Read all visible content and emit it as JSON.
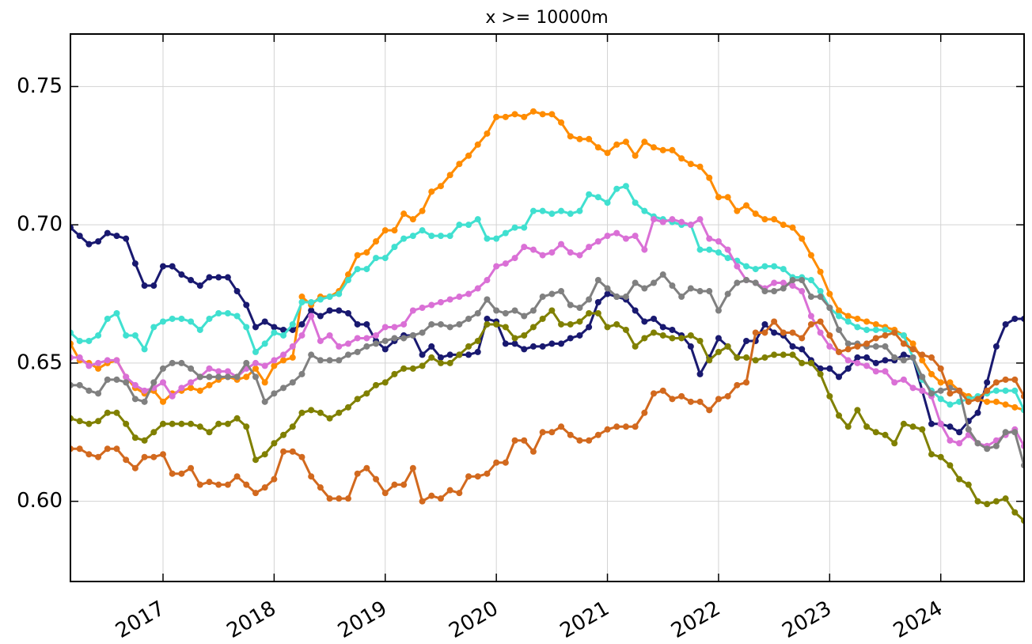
{
  "chart_data": {
    "type": "line",
    "title": "x >= 10000m",
    "x": [
      "2016-03",
      "2016-04",
      "2016-05",
      "2016-06",
      "2016-07",
      "2016-08",
      "2016-09",
      "2016-10",
      "2016-11",
      "2016-12",
      "2017-01",
      "2017-02",
      "2017-03",
      "2017-04",
      "2017-05",
      "2017-06",
      "2017-07",
      "2017-08",
      "2017-09",
      "2017-10",
      "2017-11",
      "2017-12",
      "2018-01",
      "2018-02",
      "2018-03",
      "2018-04",
      "2018-05",
      "2018-06",
      "2018-07",
      "2018-08",
      "2018-09",
      "2018-10",
      "2018-11",
      "2018-12",
      "2019-01",
      "2019-02",
      "2019-03",
      "2019-04",
      "2019-05",
      "2019-06",
      "2019-07",
      "2019-08",
      "2019-09",
      "2019-10",
      "2019-11",
      "2019-12",
      "2020-01",
      "2020-02",
      "2020-03",
      "2020-04",
      "2020-05",
      "2020-06",
      "2020-07",
      "2020-08",
      "2020-09",
      "2020-10",
      "2020-11",
      "2020-12",
      "2021-01",
      "2021-02",
      "2021-03",
      "2021-04",
      "2021-05",
      "2021-06",
      "2021-07",
      "2021-08",
      "2021-09",
      "2021-10",
      "2021-11",
      "2021-12",
      "2022-01",
      "2022-02",
      "2022-03",
      "2022-04",
      "2022-05",
      "2022-06",
      "2022-07",
      "2022-08",
      "2022-09",
      "2022-10",
      "2022-11",
      "2022-12",
      "2023-01",
      "2023-02",
      "2023-03",
      "2023-04",
      "2023-05",
      "2023-06",
      "2023-07",
      "2023-08",
      "2023-09",
      "2023-10",
      "2023-11",
      "2023-12",
      "2024-01",
      "2024-02",
      "2024-03",
      "2024-04",
      "2024-05",
      "2024-06",
      "2024-07",
      "2024-08",
      "2024-09",
      "2024-10"
    ],
    "series": [
      {
        "color": "#191970",
        "values": [
          0.699,
          0.696,
          0.693,
          0.694,
          0.697,
          0.696,
          0.695,
          0.686,
          0.678,
          0.678,
          0.685,
          0.685,
          0.682,
          0.68,
          0.678,
          0.681,
          0.681,
          0.681,
          0.676,
          0.671,
          0.663,
          0.665,
          0.663,
          0.662,
          0.662,
          0.664,
          0.669,
          0.667,
          0.669,
          0.669,
          0.668,
          0.664,
          0.664,
          0.658,
          0.655,
          0.658,
          0.66,
          0.66,
          0.653,
          0.656,
          0.652,
          0.653,
          0.653,
          0.653,
          0.654,
          0.666,
          0.665,
          0.657,
          0.657,
          0.655,
          0.656,
          0.656,
          0.657,
          0.657,
          0.659,
          0.66,
          0.663,
          0.672,
          0.675,
          0.674,
          0.673,
          0.669,
          0.665,
          0.666,
          0.663,
          0.662,
          0.66,
          0.656,
          0.646,
          0.652,
          0.659,
          0.656,
          0.652,
          0.658,
          0.658,
          0.664,
          0.661,
          0.66,
          0.656,
          0.655,
          0.651,
          0.648,
          0.648,
          0.645,
          0.648,
          0.652,
          0.652,
          0.65,
          0.651,
          0.651,
          0.653,
          0.652,
          0.64,
          0.628,
          0.628,
          0.627,
          0.625,
          0.629,
          0.632,
          0.643,
          0.656,
          0.664,
          0.666,
          0.666
        ]
      },
      {
        "color": "#ff8c00",
        "values": [
          0.657,
          0.651,
          0.65,
          0.648,
          0.65,
          0.651,
          0.645,
          0.641,
          0.639,
          0.64,
          0.636,
          0.639,
          0.64,
          0.641,
          0.64,
          0.642,
          0.644,
          0.645,
          0.644,
          0.645,
          0.648,
          0.643,
          0.649,
          0.651,
          0.652,
          0.674,
          0.671,
          0.674,
          0.674,
          0.676,
          0.682,
          0.689,
          0.69,
          0.694,
          0.698,
          0.698,
          0.704,
          0.702,
          0.705,
          0.712,
          0.714,
          0.718,
          0.722,
          0.725,
          0.729,
          0.733,
          0.739,
          0.739,
          0.74,
          0.739,
          0.741,
          0.74,
          0.74,
          0.737,
          0.732,
          0.731,
          0.731,
          0.728,
          0.726,
          0.729,
          0.73,
          0.725,
          0.73,
          0.728,
          0.727,
          0.727,
          0.724,
          0.722,
          0.721,
          0.717,
          0.71,
          0.71,
          0.705,
          0.707,
          0.704,
          0.702,
          0.702,
          0.7,
          0.699,
          0.695,
          0.689,
          0.683,
          0.675,
          0.669,
          0.667,
          0.666,
          0.665,
          0.664,
          0.663,
          0.662,
          0.66,
          0.657,
          0.651,
          0.646,
          0.643,
          0.643,
          0.64,
          0.638,
          0.637,
          0.636,
          0.636,
          0.635,
          0.634,
          0.633
        ]
      },
      {
        "color": "#40e0d0",
        "values": [
          0.661,
          0.658,
          0.658,
          0.66,
          0.666,
          0.668,
          0.66,
          0.66,
          0.655,
          0.663,
          0.665,
          0.666,
          0.666,
          0.665,
          0.662,
          0.666,
          0.668,
          0.668,
          0.667,
          0.663,
          0.654,
          0.657,
          0.661,
          0.66,
          0.664,
          0.672,
          0.672,
          0.673,
          0.674,
          0.675,
          0.68,
          0.684,
          0.684,
          0.688,
          0.688,
          0.692,
          0.695,
          0.696,
          0.698,
          0.696,
          0.696,
          0.696,
          0.7,
          0.7,
          0.702,
          0.695,
          0.695,
          0.697,
          0.699,
          0.699,
          0.705,
          0.705,
          0.704,
          0.705,
          0.704,
          0.705,
          0.711,
          0.71,
          0.708,
          0.713,
          0.714,
          0.708,
          0.705,
          0.703,
          0.702,
          0.701,
          0.7,
          0.7,
          0.691,
          0.691,
          0.69,
          0.688,
          0.687,
          0.685,
          0.684,
          0.685,
          0.685,
          0.684,
          0.681,
          0.681,
          0.68,
          0.676,
          0.67,
          0.667,
          0.665,
          0.663,
          0.662,
          0.662,
          0.662,
          0.661,
          0.66,
          0.652,
          0.644,
          0.64,
          0.637,
          0.635,
          0.636,
          0.637,
          0.638,
          0.639,
          0.64,
          0.64,
          0.64,
          0.633
        ]
      },
      {
        "color": "#da70d6",
        "values": [
          0.652,
          0.652,
          0.649,
          0.65,
          0.651,
          0.651,
          0.645,
          0.642,
          0.64,
          0.641,
          0.643,
          0.638,
          0.641,
          0.643,
          0.645,
          0.648,
          0.647,
          0.647,
          0.645,
          0.648,
          0.65,
          0.649,
          0.651,
          0.653,
          0.656,
          0.66,
          0.667,
          0.658,
          0.66,
          0.656,
          0.657,
          0.659,
          0.659,
          0.66,
          0.663,
          0.663,
          0.664,
          0.669,
          0.67,
          0.671,
          0.672,
          0.673,
          0.674,
          0.675,
          0.677,
          0.68,
          0.685,
          0.686,
          0.688,
          0.692,
          0.691,
          0.689,
          0.69,
          0.693,
          0.69,
          0.689,
          0.692,
          0.694,
          0.696,
          0.697,
          0.695,
          0.696,
          0.691,
          0.702,
          0.701,
          0.702,
          0.701,
          0.7,
          0.702,
          0.695,
          0.694,
          0.691,
          0.685,
          0.68,
          0.679,
          0.677,
          0.679,
          0.679,
          0.678,
          0.676,
          0.667,
          0.661,
          0.656,
          0.654,
          0.651,
          0.65,
          0.649,
          0.647,
          0.647,
          0.643,
          0.644,
          0.641,
          0.64,
          0.638,
          0.628,
          0.622,
          0.621,
          0.624,
          0.621,
          0.62,
          0.622,
          0.624,
          0.626,
          0.62
        ]
      },
      {
        "color": "#808080",
        "values": [
          0.642,
          0.642,
          0.64,
          0.639,
          0.644,
          0.644,
          0.643,
          0.637,
          0.636,
          0.643,
          0.648,
          0.65,
          0.65,
          0.648,
          0.645,
          0.645,
          0.645,
          0.645,
          0.645,
          0.65,
          0.645,
          0.636,
          0.639,
          0.641,
          0.643,
          0.646,
          0.653,
          0.651,
          0.651,
          0.651,
          0.653,
          0.654,
          0.656,
          0.657,
          0.658,
          0.659,
          0.659,
          0.66,
          0.661,
          0.664,
          0.664,
          0.663,
          0.664,
          0.666,
          0.668,
          0.673,
          0.669,
          0.668,
          0.669,
          0.667,
          0.669,
          0.674,
          0.675,
          0.676,
          0.671,
          0.67,
          0.673,
          0.68,
          0.677,
          0.674,
          0.674,
          0.679,
          0.677,
          0.679,
          0.682,
          0.678,
          0.674,
          0.677,
          0.676,
          0.676,
          0.669,
          0.675,
          0.679,
          0.68,
          0.679,
          0.676,
          0.676,
          0.677,
          0.68,
          0.68,
          0.674,
          0.674,
          0.67,
          0.662,
          0.657,
          0.657,
          0.656,
          0.656,
          0.656,
          0.652,
          0.651,
          0.652,
          0.645,
          0.639,
          0.64,
          0.641,
          0.64,
          0.626,
          0.621,
          0.619,
          0.62,
          0.625,
          0.625,
          0.613
        ]
      },
      {
        "color": "#808000",
        "values": [
          0.63,
          0.629,
          0.628,
          0.629,
          0.632,
          0.632,
          0.628,
          0.623,
          0.622,
          0.625,
          0.628,
          0.628,
          0.628,
          0.628,
          0.627,
          0.625,
          0.628,
          0.628,
          0.63,
          0.627,
          0.615,
          0.617,
          0.621,
          0.624,
          0.627,
          0.632,
          0.633,
          0.632,
          0.63,
          0.632,
          0.634,
          0.637,
          0.639,
          0.642,
          0.643,
          0.646,
          0.648,
          0.648,
          0.649,
          0.652,
          0.65,
          0.65,
          0.653,
          0.656,
          0.658,
          0.664,
          0.664,
          0.663,
          0.659,
          0.66,
          0.663,
          0.666,
          0.669,
          0.664,
          0.664,
          0.665,
          0.668,
          0.668,
          0.663,
          0.664,
          0.662,
          0.656,
          0.659,
          0.661,
          0.66,
          0.659,
          0.659,
          0.66,
          0.658,
          0.651,
          0.654,
          0.656,
          0.652,
          0.652,
          0.651,
          0.652,
          0.653,
          0.653,
          0.653,
          0.65,
          0.65,
          0.646,
          0.638,
          0.631,
          0.627,
          0.633,
          0.627,
          0.625,
          0.624,
          0.621,
          0.628,
          0.627,
          0.626,
          0.617,
          0.616,
          0.613,
          0.608,
          0.606,
          0.6,
          0.599,
          0.6,
          0.601,
          0.596,
          0.593
        ]
      },
      {
        "color": "#d2691e",
        "values": [
          0.619,
          0.619,
          0.617,
          0.616,
          0.619,
          0.619,
          0.615,
          0.612,
          0.616,
          0.616,
          0.617,
          0.61,
          0.61,
          0.612,
          0.606,
          0.607,
          0.606,
          0.606,
          0.609,
          0.606,
          0.603,
          0.605,
          0.608,
          0.618,
          0.618,
          0.616,
          0.609,
          0.605,
          0.601,
          0.601,
          0.601,
          0.61,
          0.612,
          0.608,
          0.603,
          0.606,
          0.606,
          0.612,
          0.6,
          0.602,
          0.601,
          0.604,
          0.603,
          0.609,
          0.609,
          0.61,
          0.614,
          0.614,
          0.622,
          0.622,
          0.618,
          0.625,
          0.625,
          0.627,
          0.624,
          0.622,
          0.622,
          0.624,
          0.626,
          0.627,
          0.627,
          0.627,
          0.632,
          0.639,
          0.64,
          0.637,
          0.638,
          0.636,
          0.636,
          0.633,
          0.637,
          0.638,
          0.642,
          0.643,
          0.661,
          0.661,
          0.665,
          0.661,
          0.661,
          0.659,
          0.664,
          0.665,
          0.66,
          0.654,
          0.655,
          0.656,
          0.657,
          0.659,
          0.66,
          0.661,
          0.657,
          0.655,
          0.653,
          0.652,
          0.648,
          0.639,
          0.64,
          0.636,
          0.637,
          0.64,
          0.643,
          0.644,
          0.644,
          0.638
        ]
      }
    ],
    "xlim": [
      "2016-03",
      "2024-10"
    ],
    "xticks": [
      {
        "value": "2017-01",
        "label": "2017"
      },
      {
        "value": "2018-01",
        "label": "2018"
      },
      {
        "value": "2019-01",
        "label": "2019"
      },
      {
        "value": "2020-01",
        "label": "2020"
      },
      {
        "value": "2021-01",
        "label": "2021"
      },
      {
        "value": "2022-01",
        "label": "2022"
      },
      {
        "value": "2023-01",
        "label": "2023"
      },
      {
        "value": "2024-01",
        "label": "2024"
      }
    ],
    "ylim": [
      0.571,
      0.769
    ],
    "yticks": [
      {
        "value": 0.6,
        "label": "0.60"
      },
      0.65,
      {
        "value": 0.7,
        "label": "0.70"
      },
      0.75
    ],
    "grid": true
  }
}
